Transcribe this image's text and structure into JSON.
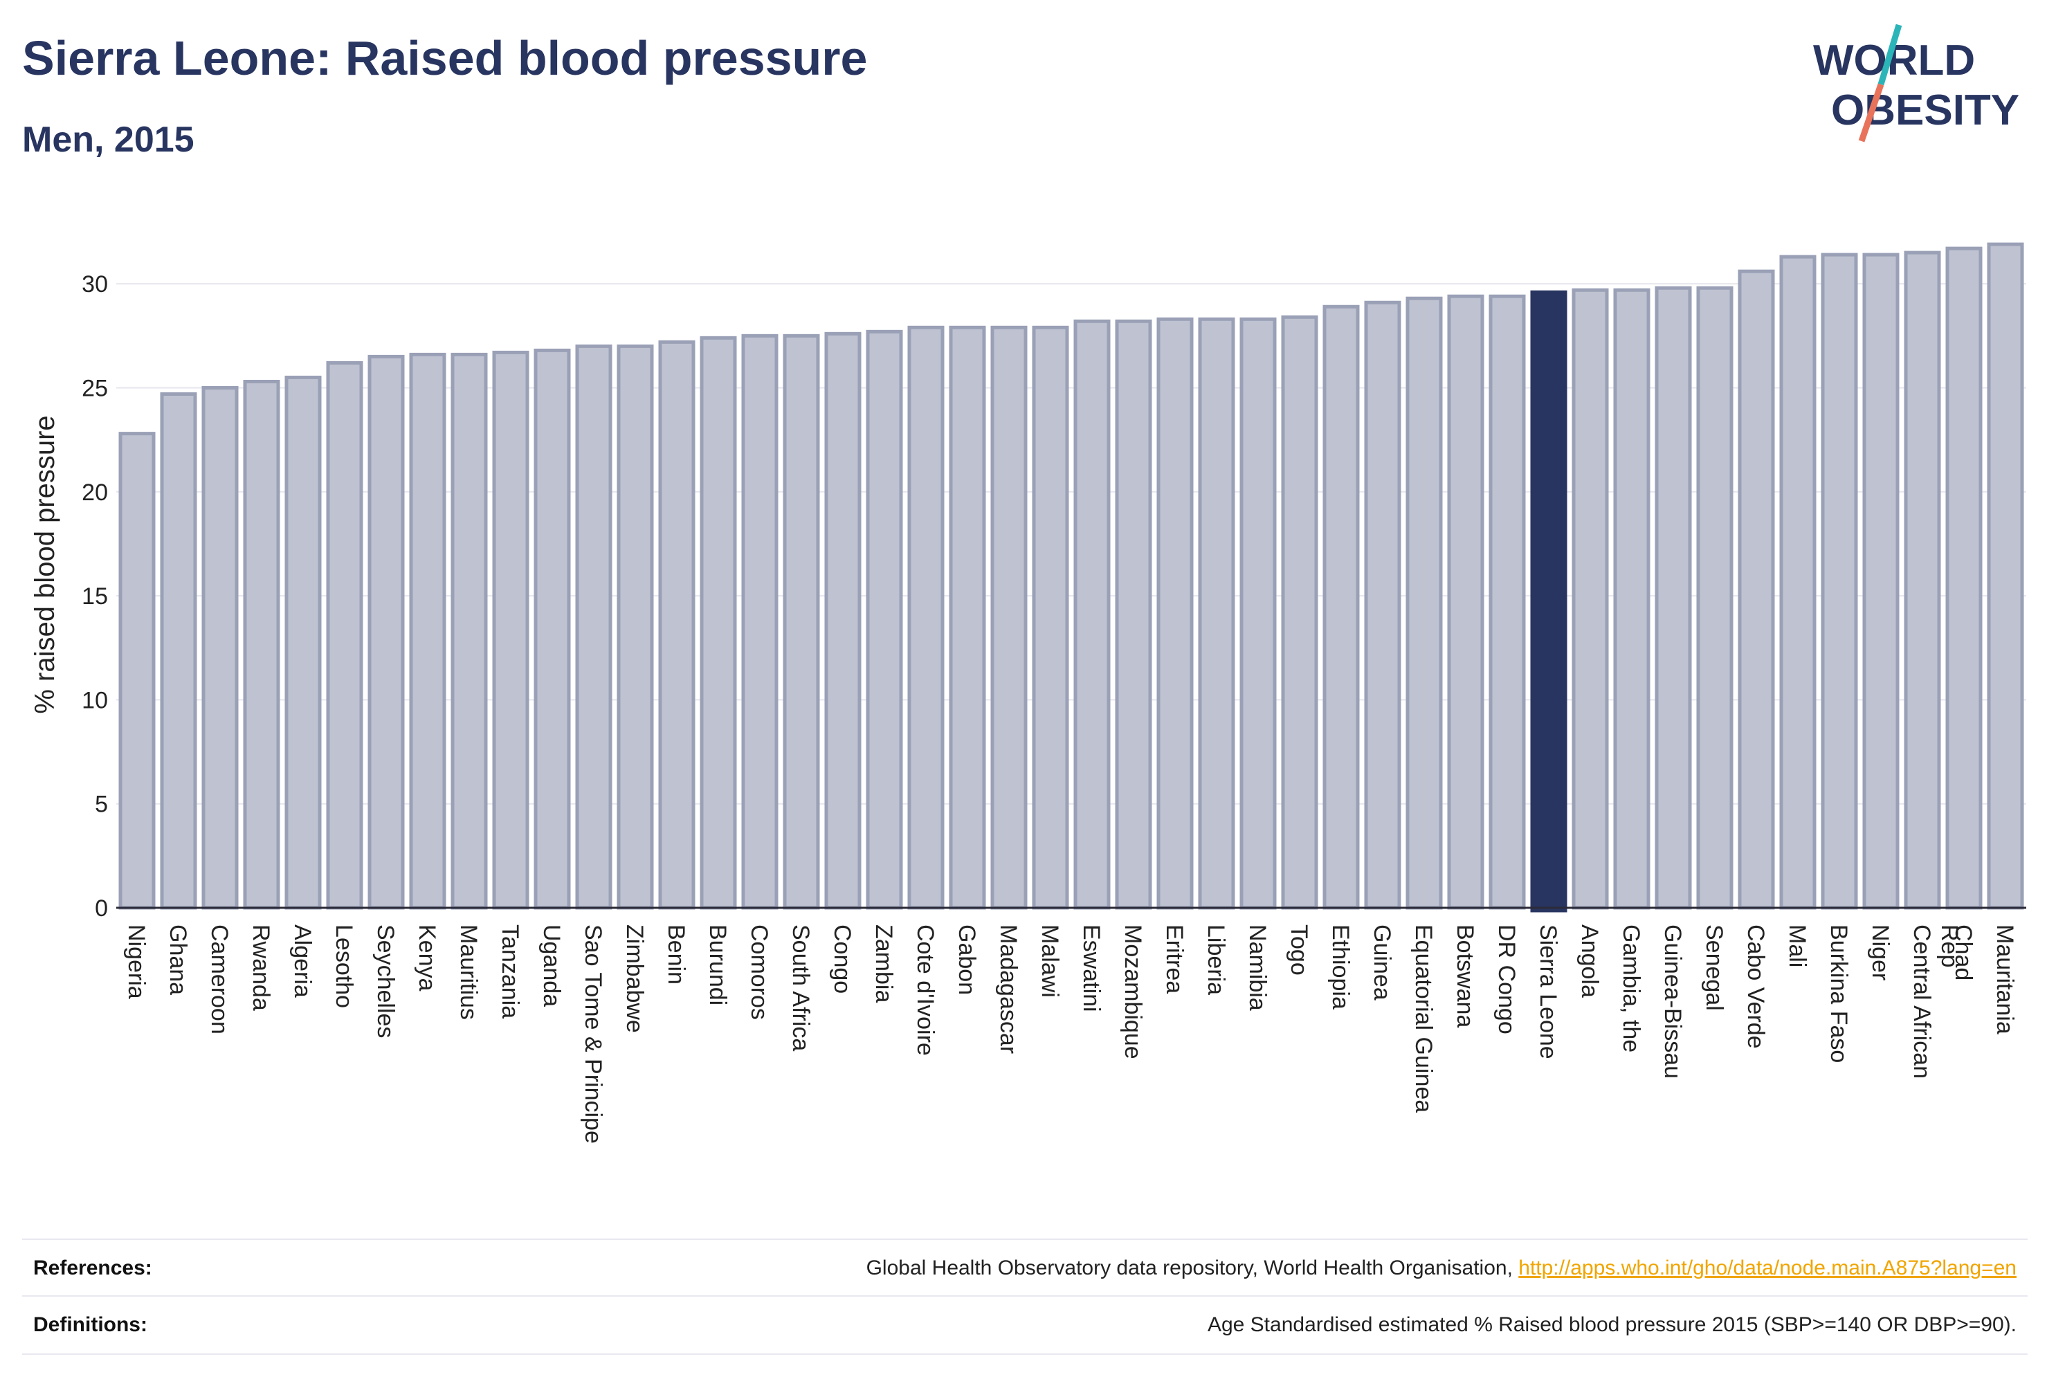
{
  "header": {
    "title": "Sierra Leone: Raised blood pressure",
    "subtitle": "Men, 2015"
  },
  "logo": {
    "line1": "WORLD",
    "line2": "OBESITY",
    "colors": {
      "text": "#283560",
      "slash_teal": "#2bb5b8",
      "slash_coral": "#e8735a"
    }
  },
  "chart_data": {
    "type": "bar",
    "ylabel": "% raised blood pressure",
    "xlabel": "",
    "ylim": [
      0,
      33
    ],
    "yticks": [
      0,
      5,
      10,
      15,
      20,
      25,
      30
    ],
    "grid": true,
    "highlight": "Sierra Leone",
    "colors": {
      "bar": "#bfc3d1",
      "bar_border": "#9aa0b6",
      "highlight": "#283560",
      "grid": "#e6e6ee"
    },
    "categories": [
      "Nigeria",
      "Ghana",
      "Cameroon",
      "Rwanda",
      "Algeria",
      "Lesotho",
      "Seychelles",
      "Kenya",
      "Mauritius",
      "Tanzania",
      "Uganda",
      "Sao Tome & Principe",
      "Zimbabwe",
      "Benin",
      "Burundi",
      "Comoros",
      "South Africa",
      "Congo",
      "Zambia",
      "Cote d'Ivoire",
      "Gabon",
      "Madagascar",
      "Malawi",
      "Eswatini",
      "Mozambique",
      "Eritrea",
      "Liberia",
      "Namibia",
      "Togo",
      "Ethiopia",
      "Guinea",
      "Equatorial Guinea",
      "Botswana",
      "DR Congo",
      "Sierra Leone",
      "Angola",
      "Gambia, the",
      "Guinea-Bissau",
      "Senegal",
      "Cabo Verde",
      "Mali",
      "Burkina Faso",
      "Niger",
      "Central African Rep",
      "Chad",
      "Mauritania"
    ],
    "values": [
      22.8,
      24.7,
      25.0,
      25.3,
      25.5,
      26.2,
      26.5,
      26.6,
      26.6,
      26.7,
      26.8,
      27.0,
      27.0,
      27.2,
      27.4,
      27.5,
      27.5,
      27.6,
      27.7,
      27.9,
      27.9,
      27.9,
      27.9,
      28.2,
      28.2,
      28.3,
      28.3,
      28.3,
      28.4,
      28.9,
      29.1,
      29.3,
      29.4,
      29.4,
      29.6,
      29.7,
      29.7,
      29.8,
      29.8,
      30.6,
      31.3,
      31.4,
      31.4,
      31.5,
      31.7,
      31.9
    ]
  },
  "footer": {
    "references_label": "References:",
    "references_text": "Global Health Observatory data repository, World Health Organisation, ",
    "references_link": "http://apps.who.int/gho/data/node.main.A875?lang=en",
    "definitions_label": "Definitions:",
    "definitions_text": "Age Standardised estimated % Raised blood pressure 2015 (SBP>=140 OR DBP>=90)."
  }
}
